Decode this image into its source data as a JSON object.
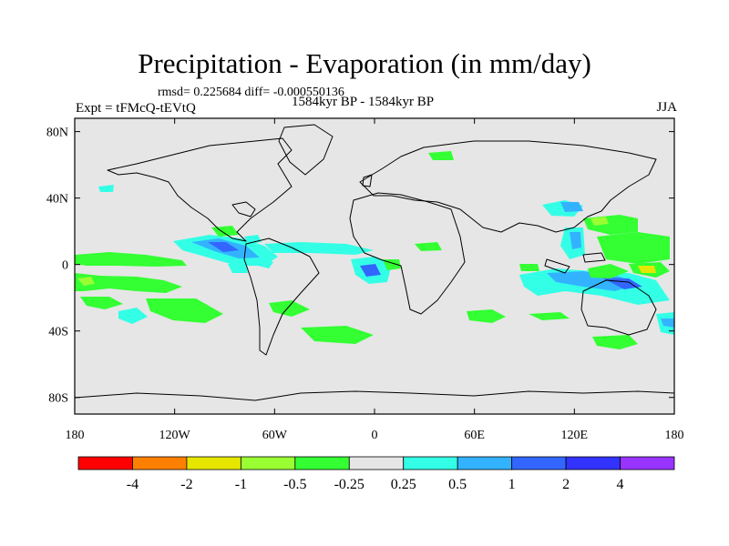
{
  "header": {
    "title": "Precipitation - Evaporation (in mm/day)",
    "stats": "rmsd= 0.225684 diff= -0.000550136",
    "experiment": "Expt = tFMcQ-tEVtQ",
    "period": "1584kyr BP - 1584kyr BP",
    "season": "JJA"
  },
  "map": {
    "background_color": "#e6e6e6",
    "lon_ticks": [
      {
        "lon": -180,
        "label": "180"
      },
      {
        "lon": -120,
        "label": "120W"
      },
      {
        "lon": -60,
        "label": "60W"
      },
      {
        "lon": 0,
        "label": "0"
      },
      {
        "lon": 60,
        "label": "60E"
      },
      {
        "lon": 120,
        "label": "120E"
      },
      {
        "lon": 180,
        "label": "180"
      }
    ],
    "lat_ticks": [
      {
        "lat": 80,
        "label": "80N"
      },
      {
        "lat": 40,
        "label": "40N"
      },
      {
        "lat": 0,
        "label": "0"
      },
      {
        "lat": -40,
        "label": "40S"
      },
      {
        "lat": -80,
        "label": "80S"
      }
    ]
  },
  "colorbar": {
    "colors": [
      "#ff0000",
      "#ff8000",
      "#e6e600",
      "#99ff33",
      "#33ff33",
      "#e6e6e6",
      "#33ffe6",
      "#33b3ff",
      "#3366ff",
      "#3333ff",
      "#9933ff"
    ],
    "labels": [
      "-4",
      "-2",
      "-1",
      "-0.5",
      "-0.25",
      "0.25",
      "0.5",
      "1",
      "2",
      "4"
    ]
  }
}
